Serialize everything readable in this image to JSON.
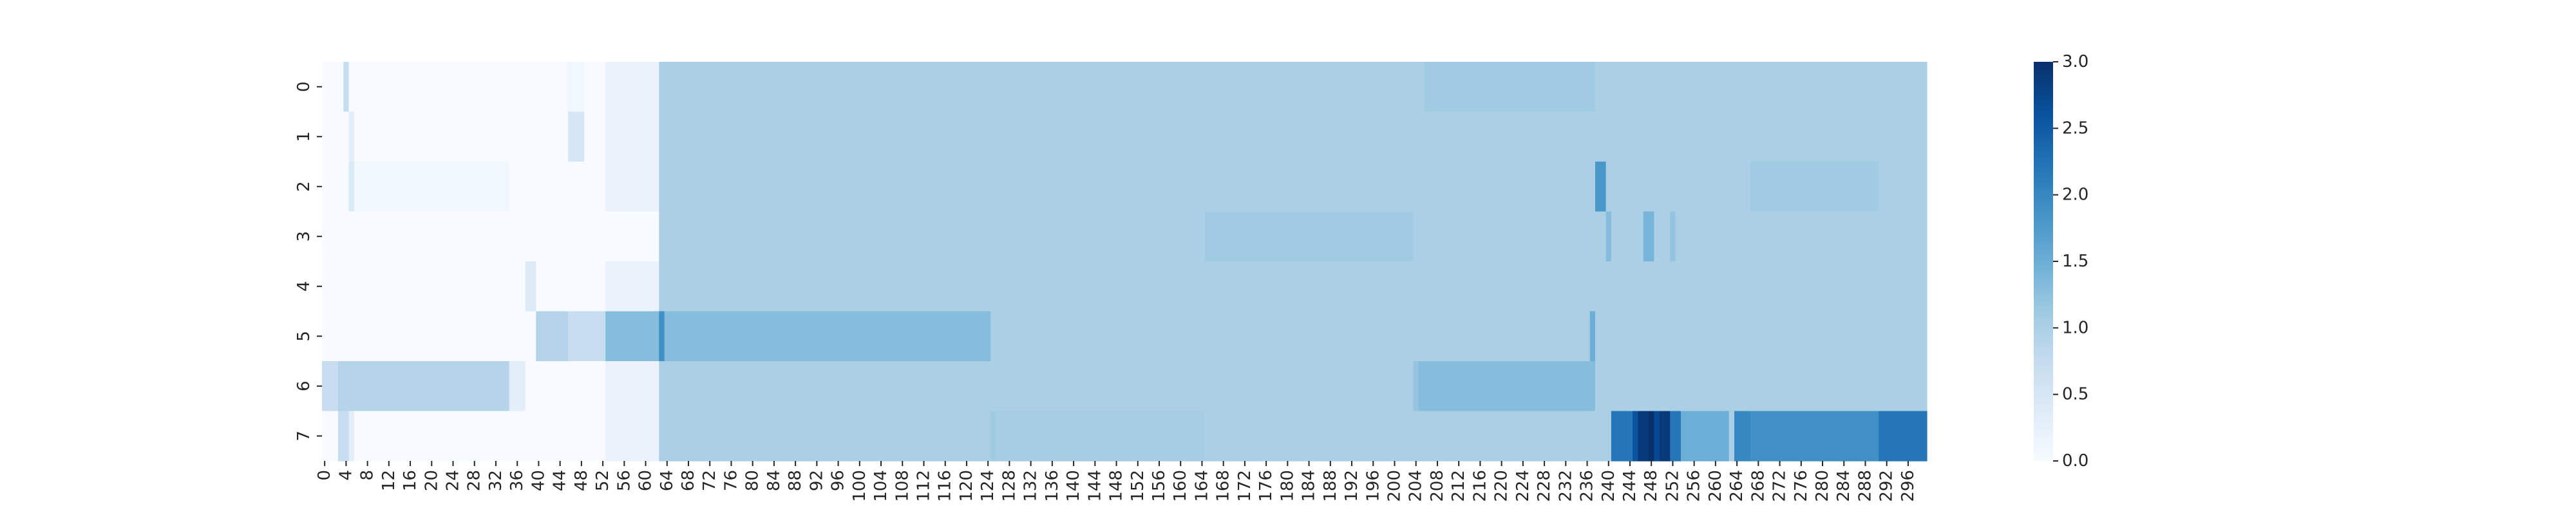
{
  "chart_data": {
    "type": "heatmap",
    "rows": [
      "0",
      "1",
      "2",
      "3",
      "4",
      "5",
      "6",
      "7"
    ],
    "n_cols": 300,
    "x_tick_step": 4,
    "colorbar": {
      "min": 0.0,
      "max": 3.0,
      "ticks": [
        "0.0",
        "0.5",
        "1.0",
        "1.5",
        "2.0",
        "2.5",
        "3.0"
      ],
      "colors": [
        "#f7fbff",
        "#deebf7",
        "#c6dbef",
        "#9ecae1",
        "#6baed6",
        "#4292c6",
        "#2171b5",
        "#08519c",
        "#08306b"
      ]
    },
    "base_value": 1.0,
    "segments": [
      [
        0,
        0,
        4,
        0.0
      ],
      [
        0,
        4,
        5,
        0.7
      ],
      [
        0,
        5,
        46,
        0.0
      ],
      [
        0,
        46,
        49,
        0.1
      ],
      [
        0,
        49,
        53,
        0.0
      ],
      [
        0,
        53,
        63,
        0.2
      ],
      [
        0,
        206,
        238,
        1.1
      ],
      [
        1,
        0,
        5,
        0.0
      ],
      [
        1,
        5,
        6,
        0.3
      ],
      [
        1,
        6,
        46,
        0.0
      ],
      [
        1,
        46,
        49,
        0.5
      ],
      [
        1,
        49,
        53,
        0.0
      ],
      [
        1,
        53,
        63,
        0.2
      ],
      [
        2,
        0,
        5,
        0.0
      ],
      [
        2,
        5,
        6,
        0.4
      ],
      [
        2,
        6,
        35,
        0.1
      ],
      [
        2,
        35,
        53,
        0.0
      ],
      [
        2,
        53,
        63,
        0.2
      ],
      [
        2,
        238,
        240,
        1.8
      ],
      [
        2,
        267,
        291,
        1.1
      ],
      [
        3,
        0,
        63,
        0.0
      ],
      [
        3,
        165,
        204,
        1.1
      ],
      [
        3,
        240,
        241,
        1.3
      ],
      [
        3,
        247,
        249,
        1.4
      ],
      [
        3,
        252,
        253,
        1.2
      ],
      [
        4,
        0,
        38,
        0.0
      ],
      [
        4,
        38,
        40,
        0.4
      ],
      [
        4,
        40,
        53,
        0.0
      ],
      [
        4,
        53,
        63,
        0.2
      ],
      [
        5,
        0,
        40,
        0.0
      ],
      [
        5,
        40,
        46,
        0.9
      ],
      [
        5,
        46,
        53,
        0.7
      ],
      [
        5,
        53,
        63,
        1.3
      ],
      [
        5,
        63,
        64,
        1.9
      ],
      [
        5,
        64,
        125,
        1.3
      ],
      [
        5,
        237,
        238,
        1.5
      ],
      [
        6,
        0,
        3,
        0.7
      ],
      [
        6,
        3,
        35,
        0.9
      ],
      [
        6,
        35,
        38,
        0.3
      ],
      [
        6,
        38,
        53,
        0.0
      ],
      [
        6,
        53,
        63,
        0.2
      ],
      [
        6,
        204,
        205,
        1.2
      ],
      [
        6,
        205,
        238,
        1.3
      ],
      [
        7,
        0,
        3,
        0.0
      ],
      [
        7,
        3,
        5,
        0.7
      ],
      [
        7,
        5,
        6,
        0.3
      ],
      [
        7,
        6,
        53,
        0.0
      ],
      [
        7,
        53,
        63,
        0.2
      ],
      [
        7,
        125,
        126,
        1.1
      ],
      [
        7,
        126,
        165,
        1.05
      ],
      [
        7,
        241,
        245,
        2.2
      ],
      [
        7,
        245,
        246,
        2.6
      ],
      [
        7,
        246,
        248,
        2.9
      ],
      [
        7,
        248,
        249,
        3.0
      ],
      [
        7,
        249,
        250,
        2.7
      ],
      [
        7,
        250,
        252,
        2.9
      ],
      [
        7,
        252,
        254,
        2.2
      ],
      [
        7,
        254,
        263,
        1.5
      ],
      [
        7,
        263,
        264,
        1.0
      ],
      [
        7,
        264,
        267,
        2.0
      ],
      [
        7,
        267,
        291,
        1.9
      ],
      [
        7,
        291,
        300,
        2.2
      ]
    ]
  }
}
